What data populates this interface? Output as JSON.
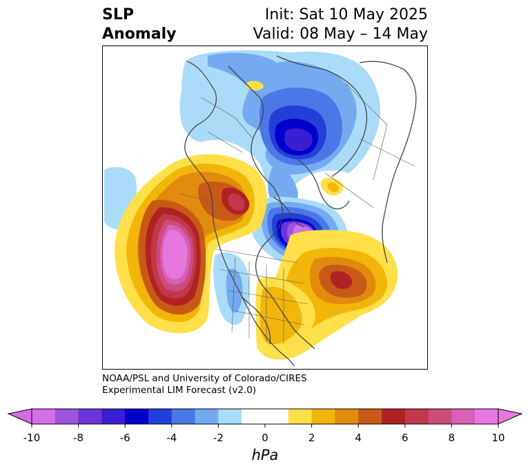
{
  "header": {
    "variable_line1": "SLP",
    "variable_line2": "Anomaly",
    "init_line": "Init: Sat 10 May 2025",
    "valid_line": "Valid: 08 May – 14 May"
  },
  "credit": {
    "line1": "NOAA/PSL and University of Colorado/CIRES",
    "line2": "Experimental LIM Forecast (v2.0)"
  },
  "colorbar": {
    "units": "hPa",
    "levels": [
      -10,
      -9,
      -8,
      -7,
      -6,
      -5,
      -4,
      -3,
      -2,
      -1,
      1,
      2,
      3,
      4,
      5,
      6,
      7,
      8,
      9,
      10
    ],
    "tick_labels": [
      "-10",
      "-8",
      "-6",
      "-4",
      "-2",
      "0",
      "2",
      "4",
      "6",
      "8",
      "10"
    ],
    "colors": [
      "#d46ee6",
      "#9d55e0",
      "#6b35d8",
      "#3a1fd0",
      "#0000cc",
      "#2240d8",
      "#4a78e6",
      "#74aaf0",
      "#aadcfa",
      "#ffffff",
      "#ffe04a",
      "#f2b60a",
      "#e08a0e",
      "#c85a18",
      "#b02222",
      "#c0384a",
      "#cc4c7c",
      "#d860b8",
      "#e878e0"
    ],
    "under_color": "#d46ee6",
    "over_color": "#e878e0"
  },
  "map": {
    "type": "polar stereographic",
    "region": "Northern Hemisphere / North America"
  }
}
